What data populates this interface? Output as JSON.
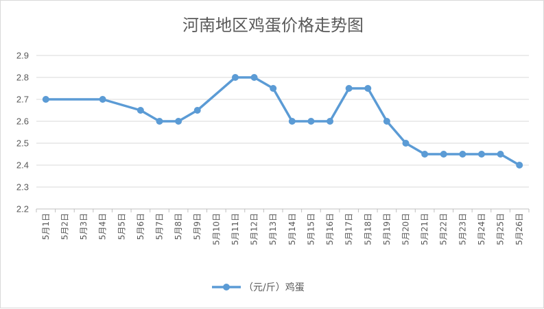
{
  "chart_data": {
    "type": "line",
    "title": "河南地区鸡蛋价格走势图",
    "categories": [
      "5月1日",
      "5月2日",
      "5月3日",
      "5月4日",
      "5月5日",
      "5月6日",
      "5月7日",
      "5月8日",
      "5月9日",
      "5月10日",
      "5月11日",
      "5月12日",
      "5月13日",
      "5月14日",
      "5月15日",
      "5月16日",
      "5月17日",
      "5月18日",
      "5月19日",
      "5月20日",
      "5月21日",
      "5月22日",
      "5月23日",
      "5月24日",
      "5月25日",
      "5月26日"
    ],
    "series": [
      {
        "name": "（元/斤）鸡蛋",
        "points": [
          {
            "x": "5月1日",
            "y": 2.7
          },
          {
            "x": "5月4日",
            "y": 2.7
          },
          {
            "x": "5月6日",
            "y": 2.65
          },
          {
            "x": "5月7日",
            "y": 2.6
          },
          {
            "x": "5月8日",
            "y": 2.6
          },
          {
            "x": "5月9日",
            "y": 2.65
          },
          {
            "x": "5月11日",
            "y": 2.8
          },
          {
            "x": "5月12日",
            "y": 2.8
          },
          {
            "x": "5月13日",
            "y": 2.75
          },
          {
            "x": "5月14日",
            "y": 2.6
          },
          {
            "x": "5月15日",
            "y": 2.6
          },
          {
            "x": "5月16日",
            "y": 2.6
          },
          {
            "x": "5月17日",
            "y": 2.75
          },
          {
            "x": "5月18日",
            "y": 2.75
          },
          {
            "x": "5月19日",
            "y": 2.6
          },
          {
            "x": "5月20日",
            "y": 2.5
          },
          {
            "x": "5月21日",
            "y": 2.45
          },
          {
            "x": "5月22日",
            "y": 2.45
          },
          {
            "x": "5月23日",
            "y": 2.45
          },
          {
            "x": "5月24日",
            "y": 2.45
          },
          {
            "x": "5月25日",
            "y": 2.45
          },
          {
            "x": "5月26日",
            "y": 2.4
          }
        ]
      }
    ],
    "yticks": [
      "2.2",
      "2.3",
      "2.4",
      "2.5",
      "2.6",
      "2.7",
      "2.8",
      "2.9"
    ],
    "ylim": [
      2.2,
      2.9
    ],
    "grid": true,
    "legend_position": "bottom",
    "color": "#5b9bd5"
  }
}
